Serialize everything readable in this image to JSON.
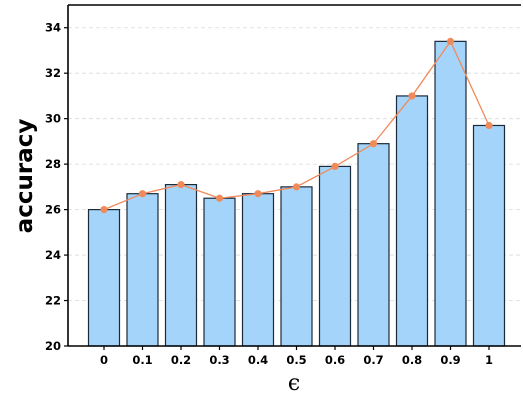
{
  "chart_data": {
    "type": "bar",
    "categories": [
      "0",
      "0.1",
      "0.2",
      "0.3",
      "0.4",
      "0.5",
      "0.6",
      "0.7",
      "0.8",
      "0.9",
      "1"
    ],
    "values": [
      26.0,
      26.7,
      27.1,
      26.5,
      26.7,
      27.0,
      27.9,
      28.9,
      31.0,
      33.4,
      29.7
    ],
    "line_overlay": [
      26.0,
      26.7,
      27.1,
      26.5,
      26.7,
      27.0,
      27.9,
      28.9,
      31.0,
      33.4,
      29.7
    ],
    "title": "",
    "xlabel": "ϵ",
    "ylabel": "accuracy",
    "ylim": [
      20,
      35
    ],
    "yticks": [
      20,
      22,
      24,
      26,
      28,
      30,
      32,
      34
    ],
    "grid": "horizontal-dashed",
    "colors": {
      "bar_fill": "#a4d4f9",
      "bar_edge": "#1c2a3a",
      "line": "#f08a5a",
      "marker": "#f08a5a",
      "grid": "#d9d9d9"
    }
  }
}
